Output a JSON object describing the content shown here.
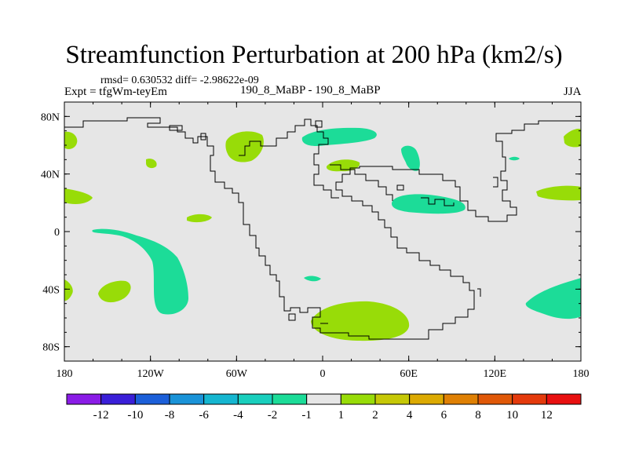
{
  "chart_data": {
    "type": "contour-map",
    "title": "Streamfunction Perturbation at 200 hPa (km2/s)",
    "stats_label": "rmsd= 0.630532 diff= -2.98622e-09",
    "left_label": "Expt = tfgWm-teyEm",
    "center_label": "190_8_MaBP - 190_8_MaBP",
    "right_label": "JJA",
    "projection": "cylindrical equidistant",
    "lon_range": [
      -180,
      180
    ],
    "lat_range": [
      -90,
      90
    ],
    "x_ticks": [
      {
        "value": -180,
        "label": "180"
      },
      {
        "value": -120,
        "label": "120W"
      },
      {
        "value": -60,
        "label": "60W"
      },
      {
        "value": 0,
        "label": "0"
      },
      {
        "value": 60,
        "label": "60E"
      },
      {
        "value": 120,
        "label": "120E"
      },
      {
        "value": 180,
        "label": "180"
      }
    ],
    "y_ticks": [
      {
        "value": 80,
        "label": "80N"
      },
      {
        "value": 40,
        "label": "40N"
      },
      {
        "value": 0,
        "label": "0"
      },
      {
        "value": -40,
        "label": "40S"
      },
      {
        "value": -80,
        "label": "80S"
      }
    ],
    "colorbar": {
      "levels": [
        "-12",
        "-10",
        "-8",
        "-6",
        "-4",
        "-2",
        "-1",
        "1",
        "2",
        "4",
        "6",
        "8",
        "10",
        "12"
      ],
      "colors": [
        "#8a1ce6",
        "#3a1fd8",
        "#1c5fd9",
        "#1a93d8",
        "#15b6d0",
        "#19cfbd",
        "#1cdc98",
        "#e6e6e6",
        "#98dc08",
        "#c6c806",
        "#dcaa02",
        "#df8004",
        "#e05808",
        "#e43a0c",
        "#e81010"
      ]
    },
    "features": [
      {
        "sign": "positive",
        "range": "1 to 2",
        "center": [
          -172,
          62
        ]
      },
      {
        "sign": "positive",
        "range": "1 to 2",
        "center": [
          -130,
          48
        ]
      },
      {
        "sign": "positive",
        "range": "1 to 2",
        "center": [
          -172,
          24
        ]
      },
      {
        "sign": "positive",
        "range": "1 to 2",
        "center": [
          -94,
          8
        ]
      },
      {
        "sign": "positive",
        "range": "1 to 2",
        "center": [
          -53,
          57
        ]
      },
      {
        "sign": "positive",
        "range": "1 to 2",
        "center": [
          13,
          48
        ]
      },
      {
        "sign": "positive",
        "range": "1 to 2",
        "center": [
          30,
          -63
        ]
      },
      {
        "sign": "positive",
        "range": "1 to 2",
        "center": [
          -140,
          -42
        ]
      },
      {
        "sign": "positive",
        "range": "1 to 2",
        "center": [
          -176,
          -40
        ]
      },
      {
        "sign": "positive",
        "range": "1 to 2",
        "center": [
          172,
          64
        ]
      },
      {
        "sign": "positive",
        "range": "1 to 2",
        "center": [
          163,
          28
        ]
      },
      {
        "sign": "negative",
        "range": "-2 to -1",
        "center": [
          -125,
          -25
        ]
      },
      {
        "sign": "negative",
        "range": "-2 to -1",
        "center": [
          18,
          67
        ]
      },
      {
        "sign": "negative",
        "range": "-2 to -1",
        "center": [
          62,
          52
        ]
      },
      {
        "sign": "negative",
        "range": "-2 to -1",
        "center": [
          74,
          18
        ]
      },
      {
        "sign": "negative",
        "range": "-2 to -1",
        "center": [
          133,
          51
        ]
      },
      {
        "sign": "negative",
        "range": "-2 to -1",
        "center": [
          -7,
          -32
        ]
      },
      {
        "sign": "negative",
        "range": "-2 to -1",
        "center": [
          160,
          -48
        ]
      }
    ]
  }
}
